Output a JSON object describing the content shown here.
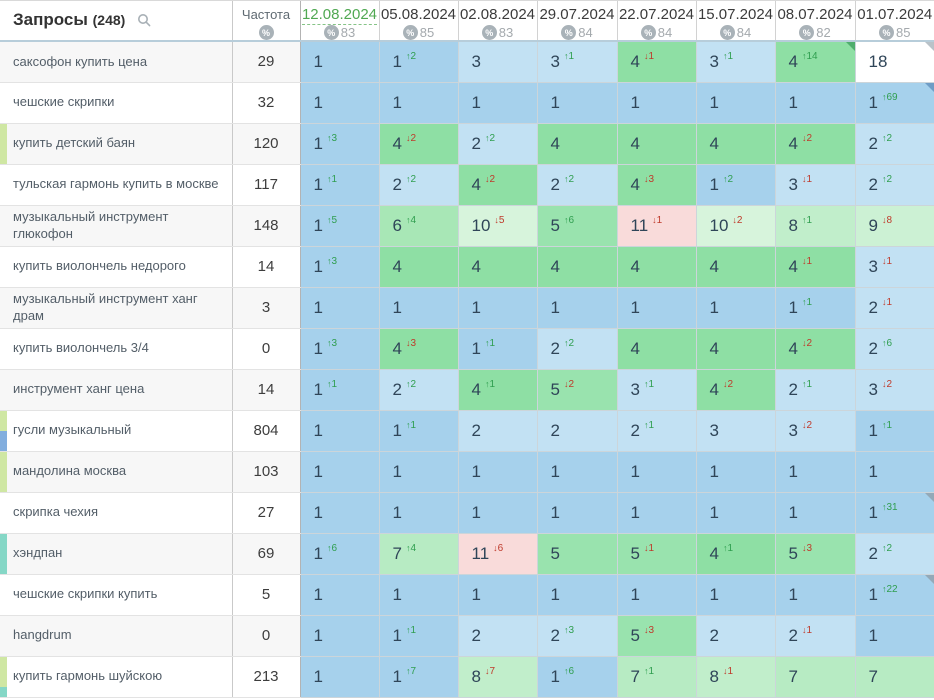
{
  "header": {
    "queries_label": "Запросы",
    "queries_count": "(248)",
    "frequency_label": "Частота",
    "selected_date_color": "#50a852",
    "dates": [
      {
        "label": "12.08.2024",
        "metric": "83",
        "selected": true
      },
      {
        "label": "05.08.2024",
        "metric": "85",
        "selected": false
      },
      {
        "label": "02.08.2024",
        "metric": "83",
        "selected": false
      },
      {
        "label": "29.07.2024",
        "metric": "84",
        "selected": false
      },
      {
        "label": "22.07.2024",
        "metric": "84",
        "selected": false
      },
      {
        "label": "15.07.2024",
        "metric": "84",
        "selected": false
      },
      {
        "label": "08.07.2024",
        "metric": "82",
        "selected": false
      },
      {
        "label": "01.07.2024",
        "metric": "85",
        "selected": false
      }
    ]
  },
  "icons": {
    "search": "search-icon",
    "percent": "%",
    "arrow_up": "↑",
    "arrow_down": "↓"
  },
  "colors": {
    "pos_top1": "#a6d1ec",
    "pos_top3": "#c2e1f3",
    "pos_4": "#8edfa4",
    "pos_5": "#99e3ae",
    "pos_6": "#a8e7b6",
    "pos_7": "#b7ebc3",
    "pos_8": "#c1eecb",
    "pos_9": "#ccf1d4",
    "pos_10": "#d7f4dc",
    "pos_11": "#f9dbda",
    "pos_out": "#ffffff",
    "change_up": "#2f9e4f",
    "change_down": "#bf3a2b"
  },
  "rows": [
    {
      "keyword": "саксофон купить цена",
      "frequency": "29",
      "tags": [],
      "cells": [
        {
          "pos": 1
        },
        {
          "pos": 1,
          "chg": 2,
          "dir": "up"
        },
        {
          "pos": 3
        },
        {
          "pos": 3,
          "chg": 1,
          "dir": "up"
        },
        {
          "pos": 4,
          "chg": 1,
          "dir": "down"
        },
        {
          "pos": 3,
          "chg": 1,
          "dir": "up"
        },
        {
          "pos": 4,
          "chg": 14,
          "dir": "up",
          "corner": "#4fae6d"
        },
        {
          "pos": 18,
          "corner": "#b9c2c8"
        }
      ]
    },
    {
      "keyword": "чешские скрипки",
      "frequency": "32",
      "tags": [],
      "cells": [
        {
          "pos": 1
        },
        {
          "pos": 1
        },
        {
          "pos": 1
        },
        {
          "pos": 1
        },
        {
          "pos": 1
        },
        {
          "pos": 1
        },
        {
          "pos": 1
        },
        {
          "pos": 1,
          "chg": 69,
          "dir": "up",
          "corner": "#6f9dc6"
        }
      ]
    },
    {
      "keyword": "купить детский баян",
      "frequency": "120",
      "tags": [
        {
          "color": "#cfe7a3",
          "frac": 1
        }
      ],
      "cells": [
        {
          "pos": 1,
          "chg": 3,
          "dir": "up"
        },
        {
          "pos": 4,
          "chg": 2,
          "dir": "down"
        },
        {
          "pos": 2,
          "chg": 2,
          "dir": "up"
        },
        {
          "pos": 4
        },
        {
          "pos": 4
        },
        {
          "pos": 4
        },
        {
          "pos": 4,
          "chg": 2,
          "dir": "down"
        },
        {
          "pos": 2,
          "chg": 2,
          "dir": "up"
        }
      ]
    },
    {
      "keyword": "тульская гармонь купить в москве",
      "frequency": "117",
      "tags": [],
      "cells": [
        {
          "pos": 1,
          "chg": 1,
          "dir": "up"
        },
        {
          "pos": 2,
          "chg": 2,
          "dir": "up"
        },
        {
          "pos": 4,
          "chg": 2,
          "dir": "down"
        },
        {
          "pos": 2,
          "chg": 2,
          "dir": "up"
        },
        {
          "pos": 4,
          "chg": 3,
          "dir": "down"
        },
        {
          "pos": 1,
          "chg": 2,
          "dir": "up"
        },
        {
          "pos": 3,
          "chg": 1,
          "dir": "down"
        },
        {
          "pos": 2,
          "chg": 2,
          "dir": "up"
        }
      ]
    },
    {
      "keyword": "музыкальный инструмент глюкофон",
      "frequency": "148",
      "tags": [],
      "cells": [
        {
          "pos": 1,
          "chg": 5,
          "dir": "up"
        },
        {
          "pos": 6,
          "chg": 4,
          "dir": "up"
        },
        {
          "pos": 10,
          "chg": 5,
          "dir": "down"
        },
        {
          "pos": 5,
          "chg": 6,
          "dir": "up"
        },
        {
          "pos": 11,
          "chg": 1,
          "dir": "down"
        },
        {
          "pos": 10,
          "chg": 2,
          "dir": "down"
        },
        {
          "pos": 8,
          "chg": 1,
          "dir": "up"
        },
        {
          "pos": 9,
          "chg": 8,
          "dir": "down"
        }
      ]
    },
    {
      "keyword": "купить виолончель недорого",
      "frequency": "14",
      "tags": [],
      "cells": [
        {
          "pos": 1,
          "chg": 3,
          "dir": "up"
        },
        {
          "pos": 4
        },
        {
          "pos": 4
        },
        {
          "pos": 4
        },
        {
          "pos": 4
        },
        {
          "pos": 4
        },
        {
          "pos": 4,
          "chg": 1,
          "dir": "down"
        },
        {
          "pos": 3,
          "chg": 1,
          "dir": "down"
        }
      ]
    },
    {
      "keyword": "музыкальный инструмент ханг драм",
      "frequency": "3",
      "tags": [],
      "cells": [
        {
          "pos": 1
        },
        {
          "pos": 1
        },
        {
          "pos": 1
        },
        {
          "pos": 1
        },
        {
          "pos": 1
        },
        {
          "pos": 1
        },
        {
          "pos": 1,
          "chg": 1,
          "dir": "up"
        },
        {
          "pos": 2,
          "chg": 1,
          "dir": "down"
        }
      ]
    },
    {
      "keyword": "купить виолончель 3/4",
      "frequency": "0",
      "tags": [],
      "cells": [
        {
          "pos": 1,
          "chg": 3,
          "dir": "up"
        },
        {
          "pos": 4,
          "chg": 3,
          "dir": "down"
        },
        {
          "pos": 1,
          "chg": 1,
          "dir": "up"
        },
        {
          "pos": 2,
          "chg": 2,
          "dir": "up"
        },
        {
          "pos": 4
        },
        {
          "pos": 4
        },
        {
          "pos": 4,
          "chg": 2,
          "dir": "down"
        },
        {
          "pos": 2,
          "chg": 6,
          "dir": "up"
        }
      ]
    },
    {
      "keyword": "инструмент ханг цена",
      "frequency": "14",
      "tags": [],
      "cells": [
        {
          "pos": 1,
          "chg": 1,
          "dir": "up"
        },
        {
          "pos": 2,
          "chg": 2,
          "dir": "up"
        },
        {
          "pos": 4,
          "chg": 1,
          "dir": "up"
        },
        {
          "pos": 5,
          "chg": 2,
          "dir": "down"
        },
        {
          "pos": 3,
          "chg": 1,
          "dir": "up"
        },
        {
          "pos": 4,
          "chg": 2,
          "dir": "down"
        },
        {
          "pos": 2,
          "chg": 1,
          "dir": "up"
        },
        {
          "pos": 3,
          "chg": 2,
          "dir": "down"
        }
      ]
    },
    {
      "keyword": "гусли музыкальный",
      "frequency": "804",
      "tags": [
        {
          "color": "#cfe7a3",
          "frac": 0.5
        },
        {
          "color": "#82aede",
          "frac": 0.5
        }
      ],
      "cells": [
        {
          "pos": 1
        },
        {
          "pos": 1,
          "chg": 1,
          "dir": "up"
        },
        {
          "pos": 2
        },
        {
          "pos": 2
        },
        {
          "pos": 2,
          "chg": 1,
          "dir": "up"
        },
        {
          "pos": 3
        },
        {
          "pos": 3,
          "chg": 2,
          "dir": "down"
        },
        {
          "pos": 1,
          "chg": 1,
          "dir": "up"
        }
      ]
    },
    {
      "keyword": "мандолина москва",
      "frequency": "103",
      "tags": [
        {
          "color": "#cfe7a3",
          "frac": 1
        }
      ],
      "cells": [
        {
          "pos": 1
        },
        {
          "pos": 1
        },
        {
          "pos": 1
        },
        {
          "pos": 1
        },
        {
          "pos": 1
        },
        {
          "pos": 1
        },
        {
          "pos": 1
        },
        {
          "pos": 1
        }
      ]
    },
    {
      "keyword": "скрипка чехия",
      "frequency": "27",
      "tags": [],
      "cells": [
        {
          "pos": 1
        },
        {
          "pos": 1
        },
        {
          "pos": 1
        },
        {
          "pos": 1
        },
        {
          "pos": 1
        },
        {
          "pos": 1
        },
        {
          "pos": 1
        },
        {
          "pos": 1,
          "chg": 31,
          "dir": "up",
          "corner": "#93a9b8"
        }
      ]
    },
    {
      "keyword": "хэндпан",
      "frequency": "69",
      "tags": [
        {
          "color": "#85d7c6",
          "frac": 1
        }
      ],
      "cells": [
        {
          "pos": 1,
          "chg": 6,
          "dir": "up"
        },
        {
          "pos": 7,
          "chg": 4,
          "dir": "up"
        },
        {
          "pos": 11,
          "chg": 6,
          "dir": "down"
        },
        {
          "pos": 5
        },
        {
          "pos": 5,
          "chg": 1,
          "dir": "down"
        },
        {
          "pos": 4,
          "chg": 1,
          "dir": "up"
        },
        {
          "pos": 5,
          "chg": 3,
          "dir": "down"
        },
        {
          "pos": 2,
          "chg": 2,
          "dir": "up"
        }
      ]
    },
    {
      "keyword": "чешские скрипки купить",
      "frequency": "5",
      "tags": [],
      "cells": [
        {
          "pos": 1
        },
        {
          "pos": 1
        },
        {
          "pos": 1
        },
        {
          "pos": 1
        },
        {
          "pos": 1
        },
        {
          "pos": 1
        },
        {
          "pos": 1
        },
        {
          "pos": 1,
          "chg": 22,
          "dir": "up",
          "corner": "#93a9b8"
        }
      ]
    },
    {
      "keyword": "hangdrum",
      "frequency": "0",
      "tags": [],
      "cells": [
        {
          "pos": 1
        },
        {
          "pos": 1,
          "chg": 1,
          "dir": "up"
        },
        {
          "pos": 2
        },
        {
          "pos": 2,
          "chg": 3,
          "dir": "up"
        },
        {
          "pos": 5,
          "chg": 3,
          "dir": "down"
        },
        {
          "pos": 2
        },
        {
          "pos": 2,
          "chg": 1,
          "dir": "down"
        },
        {
          "pos": 1
        }
      ]
    },
    {
      "keyword": "купить гармонь шуйскою",
      "frequency": "213",
      "tags": [
        {
          "color": "#cfe7a3",
          "frac": 0.75
        },
        {
          "color": "#85d7c6",
          "frac": 0.25
        }
      ],
      "cells": [
        {
          "pos": 1
        },
        {
          "pos": 1,
          "chg": 7,
          "dir": "up"
        },
        {
          "pos": 8,
          "chg": 7,
          "dir": "down"
        },
        {
          "pos": 1,
          "chg": 6,
          "dir": "up"
        },
        {
          "pos": 7,
          "chg": 1,
          "dir": "up"
        },
        {
          "pos": 8,
          "chg": 1,
          "dir": "down"
        },
        {
          "pos": 7
        },
        {
          "pos": 7
        }
      ]
    }
  ]
}
